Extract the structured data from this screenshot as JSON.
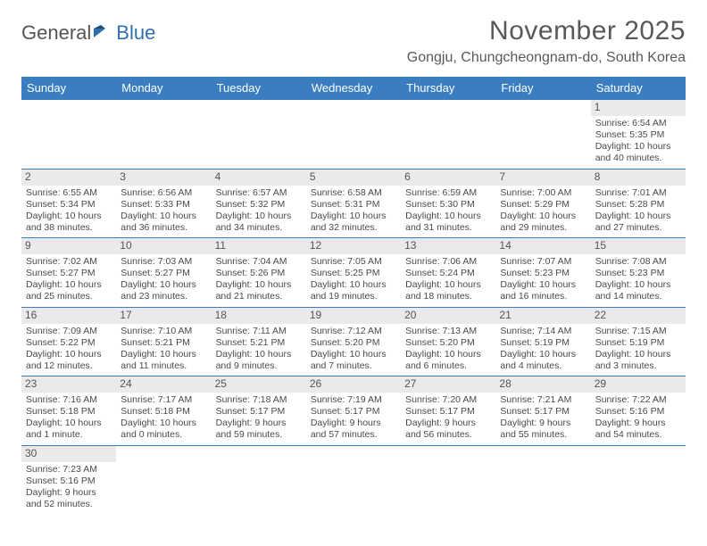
{
  "logo": {
    "part1": "General",
    "part2": "Blue"
  },
  "title": "November 2025",
  "location": "Gongju, Chungcheongnam-do, South Korea",
  "colors": {
    "header_bg": "#3a7ec1",
    "header_text": "#ffffff",
    "daynum_bg": "#eaeaea",
    "week_border": "#3a7ec1",
    "text": "#4a4a4a",
    "title_text": "#595959"
  },
  "day_headers": [
    "Sunday",
    "Monday",
    "Tuesday",
    "Wednesday",
    "Thursday",
    "Friday",
    "Saturday"
  ],
  "weeks": [
    [
      {
        "blank": true
      },
      {
        "blank": true
      },
      {
        "blank": true
      },
      {
        "blank": true
      },
      {
        "blank": true
      },
      {
        "blank": true
      },
      {
        "n": "1",
        "sr": "Sunrise: 6:54 AM",
        "ss": "Sunset: 5:35 PM",
        "dl": "Daylight: 10 hours and 40 minutes."
      }
    ],
    [
      {
        "n": "2",
        "sr": "Sunrise: 6:55 AM",
        "ss": "Sunset: 5:34 PM",
        "dl": "Daylight: 10 hours and 38 minutes."
      },
      {
        "n": "3",
        "sr": "Sunrise: 6:56 AM",
        "ss": "Sunset: 5:33 PM",
        "dl": "Daylight: 10 hours and 36 minutes."
      },
      {
        "n": "4",
        "sr": "Sunrise: 6:57 AM",
        "ss": "Sunset: 5:32 PM",
        "dl": "Daylight: 10 hours and 34 minutes."
      },
      {
        "n": "5",
        "sr": "Sunrise: 6:58 AM",
        "ss": "Sunset: 5:31 PM",
        "dl": "Daylight: 10 hours and 32 minutes."
      },
      {
        "n": "6",
        "sr": "Sunrise: 6:59 AM",
        "ss": "Sunset: 5:30 PM",
        "dl": "Daylight: 10 hours and 31 minutes."
      },
      {
        "n": "7",
        "sr": "Sunrise: 7:00 AM",
        "ss": "Sunset: 5:29 PM",
        "dl": "Daylight: 10 hours and 29 minutes."
      },
      {
        "n": "8",
        "sr": "Sunrise: 7:01 AM",
        "ss": "Sunset: 5:28 PM",
        "dl": "Daylight: 10 hours and 27 minutes."
      }
    ],
    [
      {
        "n": "9",
        "sr": "Sunrise: 7:02 AM",
        "ss": "Sunset: 5:27 PM",
        "dl": "Daylight: 10 hours and 25 minutes."
      },
      {
        "n": "10",
        "sr": "Sunrise: 7:03 AM",
        "ss": "Sunset: 5:27 PM",
        "dl": "Daylight: 10 hours and 23 minutes."
      },
      {
        "n": "11",
        "sr": "Sunrise: 7:04 AM",
        "ss": "Sunset: 5:26 PM",
        "dl": "Daylight: 10 hours and 21 minutes."
      },
      {
        "n": "12",
        "sr": "Sunrise: 7:05 AM",
        "ss": "Sunset: 5:25 PM",
        "dl": "Daylight: 10 hours and 19 minutes."
      },
      {
        "n": "13",
        "sr": "Sunrise: 7:06 AM",
        "ss": "Sunset: 5:24 PM",
        "dl": "Daylight: 10 hours and 18 minutes."
      },
      {
        "n": "14",
        "sr": "Sunrise: 7:07 AM",
        "ss": "Sunset: 5:23 PM",
        "dl": "Daylight: 10 hours and 16 minutes."
      },
      {
        "n": "15",
        "sr": "Sunrise: 7:08 AM",
        "ss": "Sunset: 5:23 PM",
        "dl": "Daylight: 10 hours and 14 minutes."
      }
    ],
    [
      {
        "n": "16",
        "sr": "Sunrise: 7:09 AM",
        "ss": "Sunset: 5:22 PM",
        "dl": "Daylight: 10 hours and 12 minutes."
      },
      {
        "n": "17",
        "sr": "Sunrise: 7:10 AM",
        "ss": "Sunset: 5:21 PM",
        "dl": "Daylight: 10 hours and 11 minutes."
      },
      {
        "n": "18",
        "sr": "Sunrise: 7:11 AM",
        "ss": "Sunset: 5:21 PM",
        "dl": "Daylight: 10 hours and 9 minutes."
      },
      {
        "n": "19",
        "sr": "Sunrise: 7:12 AM",
        "ss": "Sunset: 5:20 PM",
        "dl": "Daylight: 10 hours and 7 minutes."
      },
      {
        "n": "20",
        "sr": "Sunrise: 7:13 AM",
        "ss": "Sunset: 5:20 PM",
        "dl": "Daylight: 10 hours and 6 minutes."
      },
      {
        "n": "21",
        "sr": "Sunrise: 7:14 AM",
        "ss": "Sunset: 5:19 PM",
        "dl": "Daylight: 10 hours and 4 minutes."
      },
      {
        "n": "22",
        "sr": "Sunrise: 7:15 AM",
        "ss": "Sunset: 5:19 PM",
        "dl": "Daylight: 10 hours and 3 minutes."
      }
    ],
    [
      {
        "n": "23",
        "sr": "Sunrise: 7:16 AM",
        "ss": "Sunset: 5:18 PM",
        "dl": "Daylight: 10 hours and 1 minute."
      },
      {
        "n": "24",
        "sr": "Sunrise: 7:17 AM",
        "ss": "Sunset: 5:18 PM",
        "dl": "Daylight: 10 hours and 0 minutes."
      },
      {
        "n": "25",
        "sr": "Sunrise: 7:18 AM",
        "ss": "Sunset: 5:17 PM",
        "dl": "Daylight: 9 hours and 59 minutes."
      },
      {
        "n": "26",
        "sr": "Sunrise: 7:19 AM",
        "ss": "Sunset: 5:17 PM",
        "dl": "Daylight: 9 hours and 57 minutes."
      },
      {
        "n": "27",
        "sr": "Sunrise: 7:20 AM",
        "ss": "Sunset: 5:17 PM",
        "dl": "Daylight: 9 hours and 56 minutes."
      },
      {
        "n": "28",
        "sr": "Sunrise: 7:21 AM",
        "ss": "Sunset: 5:17 PM",
        "dl": "Daylight: 9 hours and 55 minutes."
      },
      {
        "n": "29",
        "sr": "Sunrise: 7:22 AM",
        "ss": "Sunset: 5:16 PM",
        "dl": "Daylight: 9 hours and 54 minutes."
      }
    ],
    [
      {
        "n": "30",
        "sr": "Sunrise: 7:23 AM",
        "ss": "Sunset: 5:16 PM",
        "dl": "Daylight: 9 hours and 52 minutes."
      },
      {
        "blank": true
      },
      {
        "blank": true
      },
      {
        "blank": true
      },
      {
        "blank": true
      },
      {
        "blank": true
      },
      {
        "blank": true
      }
    ]
  ]
}
